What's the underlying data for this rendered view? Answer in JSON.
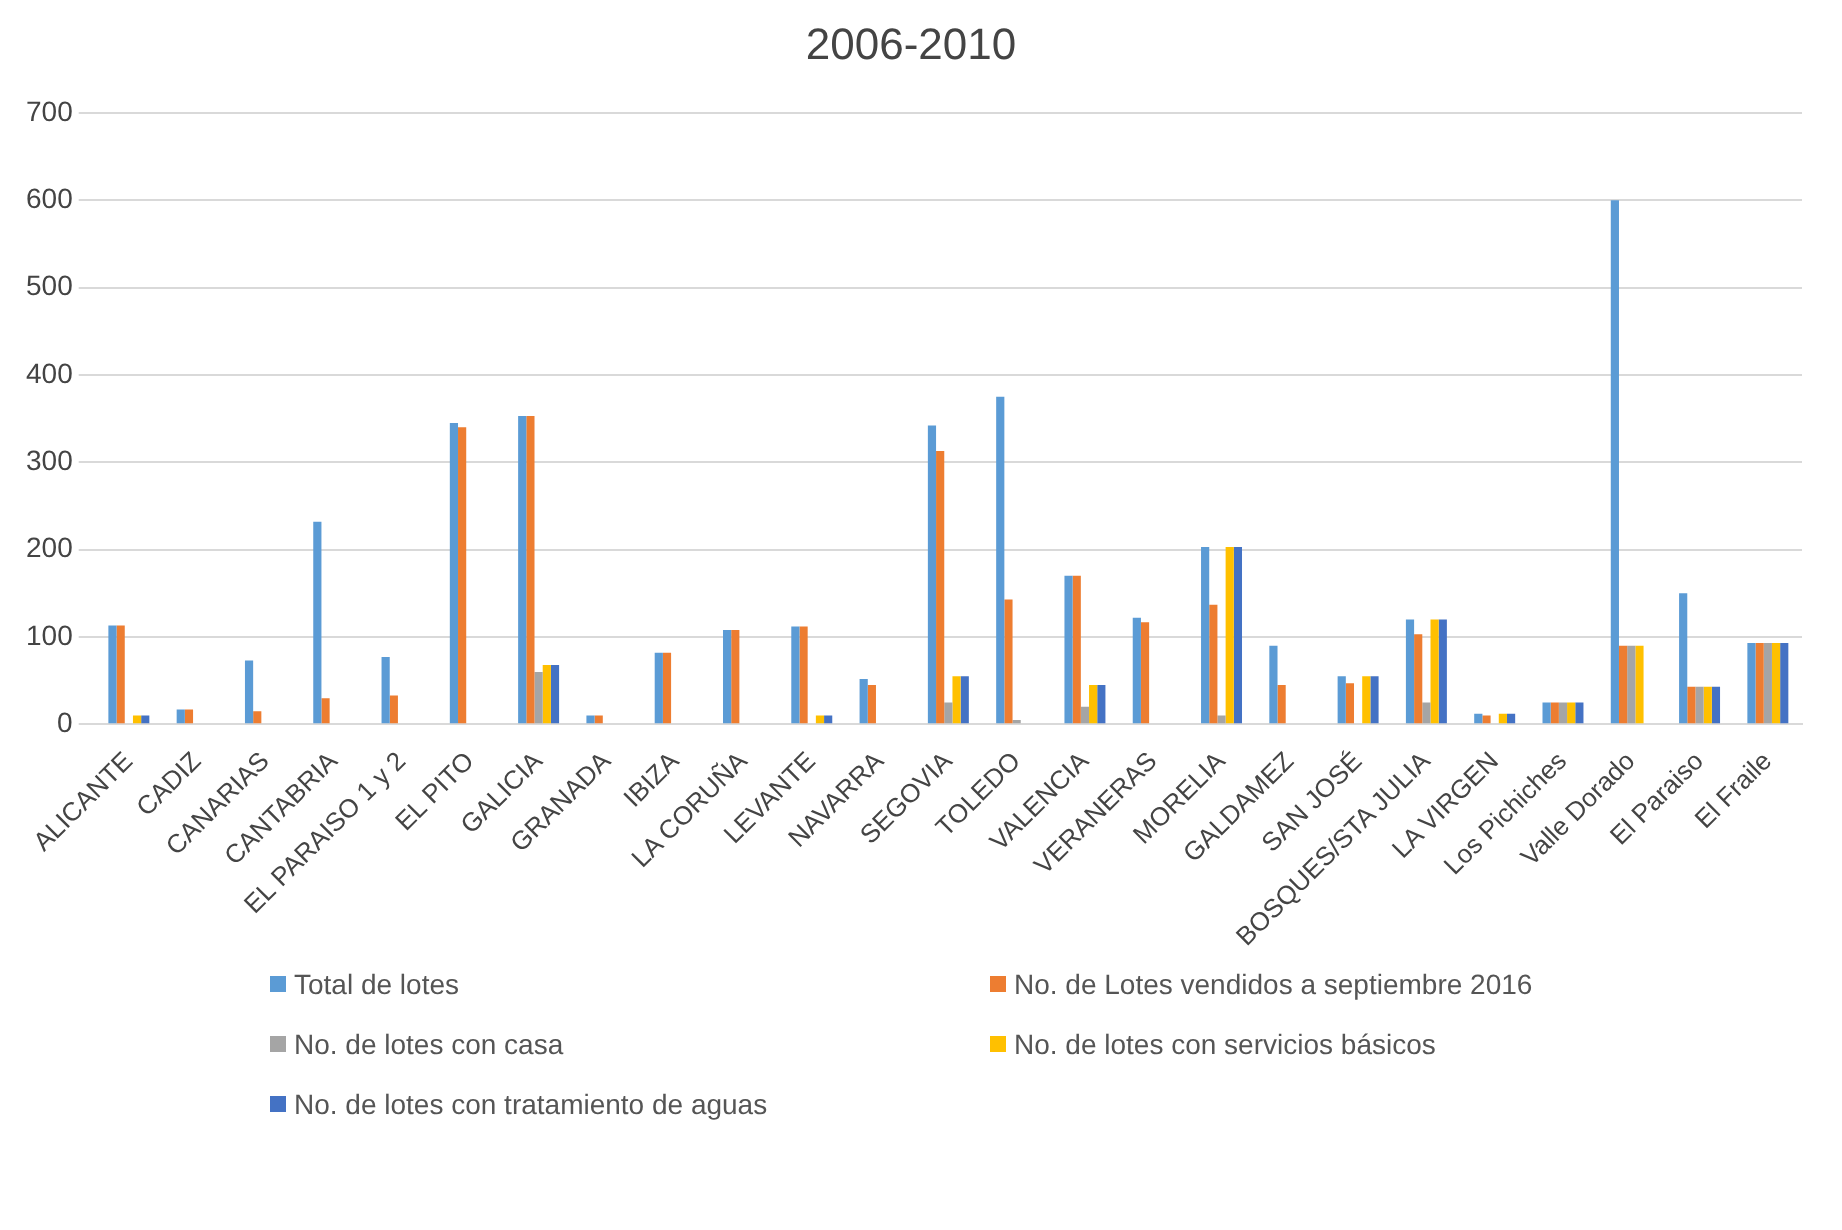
{
  "chart_data": {
    "type": "bar",
    "title": "2006-2010",
    "categories": [
      "ALICANTE",
      "CADIZ",
      "CANARIAS",
      "CANTABRIA",
      "EL PARAISO 1 y 2",
      "EL PITO",
      "GALICIA",
      "GRANADA",
      "IBIZA",
      "LA CORUÑA",
      "LEVANTE",
      "NAVARRA",
      "SEGOVIA",
      "TOLEDO",
      "VALENCIA",
      "VERANERAS",
      "MORELIA",
      "GALDAMEZ",
      "SAN JOSÉ",
      "BOSQUES/STA JULIA",
      "LA VIRGEN",
      "Los Pichiches",
      "Valle Dorado",
      "El Paraiso",
      "El Fraile"
    ],
    "series": [
      {
        "name": "Total de lotes",
        "color": "#5b9bd5",
        "values": [
          113,
          17,
          73,
          232,
          77,
          345,
          353,
          10,
          82,
          108,
          112,
          52,
          342,
          375,
          170,
          122,
          203,
          90,
          55,
          120,
          12,
          25,
          600,
          150,
          93
        ]
      },
      {
        "name": "No. de Lotes vendidos a septiembre 2016",
        "color": "#ed7d31",
        "values": [
          113,
          17,
          15,
          30,
          33,
          340,
          353,
          10,
          82,
          108,
          112,
          45,
          313,
          143,
          170,
          117,
          137,
          45,
          47,
          103,
          10,
          25,
          90,
          43,
          93
        ]
      },
      {
        "name": "No. de lotes con casa",
        "color": "#a5a5a5",
        "values": [
          null,
          0,
          0,
          0,
          0,
          0,
          60,
          0,
          0,
          null,
          0,
          0,
          25,
          5,
          20,
          null,
          10,
          null,
          0,
          25,
          0,
          25,
          90,
          43,
          93
        ]
      },
      {
        "name": "No. de lotes con servicios básicos",
        "color": "#ffc000",
        "values": [
          10,
          0,
          0,
          0,
          0,
          0,
          68,
          0,
          0,
          0,
          10,
          0,
          55,
          null,
          45,
          0,
          203,
          0,
          55,
          120,
          12,
          25,
          90,
          43,
          93
        ]
      },
      {
        "name": "No. de lotes con tratamiento de aguas",
        "color": "#4472c4",
        "values": [
          10,
          0,
          0,
          0,
          0,
          0,
          68,
          0,
          0,
          0,
          10,
          0,
          55,
          0,
          45,
          0,
          203,
          0,
          55,
          120,
          12,
          25,
          0,
          43,
          93
        ]
      }
    ],
    "ylim": [
      0,
      700
    ],
    "yticks": [
      0,
      100,
      200,
      300,
      400,
      500,
      600,
      700
    ],
    "grid": "y",
    "legend": "bottom"
  }
}
